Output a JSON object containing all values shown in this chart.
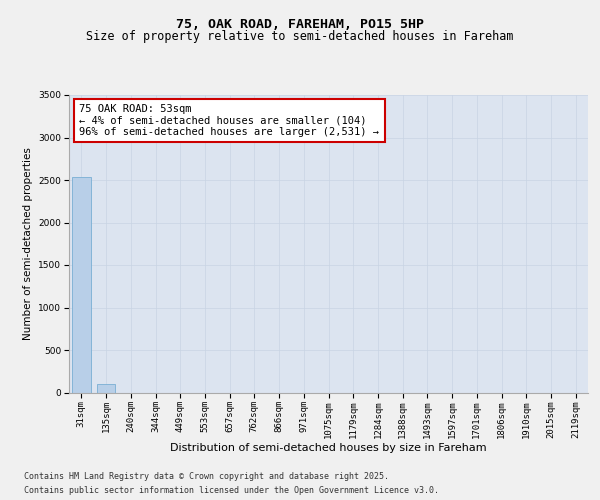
{
  "title1": "75, OAK ROAD, FAREHAM, PO15 5HP",
  "title2": "Size of property relative to semi-detached houses in Fareham",
  "xlabel": "Distribution of semi-detached houses by size in Fareham",
  "ylabel": "Number of semi-detached properties",
  "categories": [
    "31sqm",
    "135sqm",
    "240sqm",
    "344sqm",
    "449sqm",
    "553sqm",
    "657sqm",
    "762sqm",
    "866sqm",
    "971sqm",
    "1075sqm",
    "1179sqm",
    "1284sqm",
    "1388sqm",
    "1493sqm",
    "1597sqm",
    "1701sqm",
    "1806sqm",
    "1910sqm",
    "2015sqm",
    "2119sqm"
  ],
  "values": [
    2530,
    104,
    0,
    0,
    0,
    0,
    0,
    0,
    0,
    0,
    0,
    0,
    0,
    0,
    0,
    0,
    0,
    0,
    0,
    0,
    0
  ],
  "bar_color": "#b8cfe8",
  "bar_edge_color": "#7aafd4",
  "ylim": [
    0,
    3500
  ],
  "yticks": [
    0,
    500,
    1000,
    1500,
    2000,
    2500,
    3000,
    3500
  ],
  "grid_color": "#c8d4e4",
  "bg_color": "#dce4f0",
  "fig_color": "#f0f0f0",
  "annotation_text": "75 OAK ROAD: 53sqm\n← 4% of semi-detached houses are smaller (104)\n96% of semi-detached houses are larger (2,531) →",
  "annotation_box_color": "#ffffff",
  "annotation_box_edge": "#cc0000",
  "footer_line1": "Contains HM Land Registry data © Crown copyright and database right 2025.",
  "footer_line2": "Contains public sector information licensed under the Open Government Licence v3.0.",
  "title1_fontsize": 9.5,
  "title2_fontsize": 8.5,
  "xlabel_fontsize": 8,
  "ylabel_fontsize": 7.5,
  "tick_fontsize": 6.5,
  "annotation_fontsize": 7.5,
  "footer_fontsize": 6
}
